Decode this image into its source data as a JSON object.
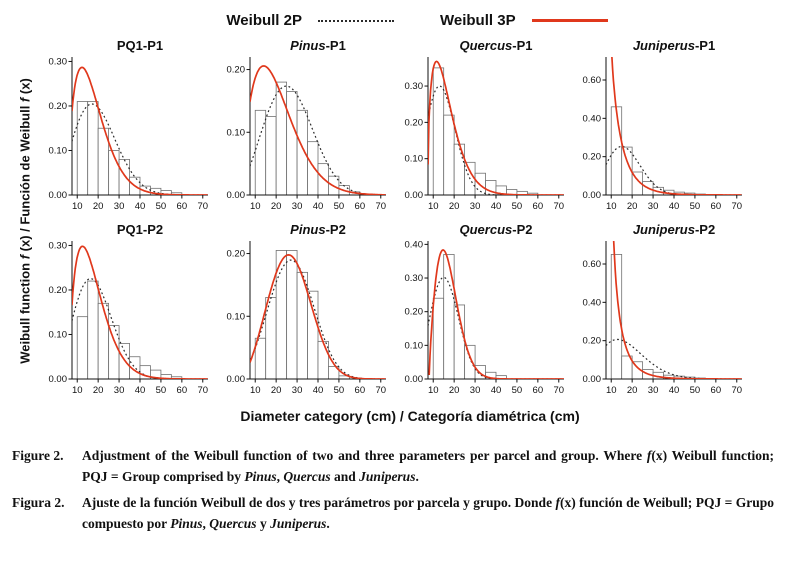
{
  "legend": {
    "items": [
      {
        "label": "Weibull 2P",
        "style": "dotted",
        "color": "#2a2a2a"
      },
      {
        "label": "Weibull 3P",
        "style": "solid",
        "color": "#e0381c"
      }
    ]
  },
  "axes": {
    "y_label_segments": [
      {
        "t": "Weibull function "
      },
      {
        "t": "f",
        "i": true
      },
      {
        "t": " (x) / Función de Weibull "
      },
      {
        "t": "f",
        "i": true
      },
      {
        "t": " (x)"
      }
    ],
    "x_label": "Diameter category (cm) / Categoría diamétrica (cm)"
  },
  "caption": {
    "english": {
      "label": "Figure 2.",
      "segments": [
        {
          "t": "Adjustment of the Weibull function of two and three parameters per parcel and group. Where "
        },
        {
          "t": "f",
          "i": true
        },
        {
          "t": "(x) Weibull function; PQJ = Group comprised by "
        },
        {
          "t": "Pinus",
          "i": true
        },
        {
          "t": ", "
        },
        {
          "t": "Quercus",
          "i": true
        },
        {
          "t": " and "
        },
        {
          "t": "Juniperus",
          "i": true
        },
        {
          "t": "."
        }
      ]
    },
    "spanish": {
      "label": "Figura 2.",
      "segments": [
        {
          "t": "Ajuste de la función Weibull de dos y tres parámetros por parcela y grupo. Donde "
        },
        {
          "t": "f",
          "i": true
        },
        {
          "t": "(x) función de Weibull; PQJ = Grupo compuesto por "
        },
        {
          "t": "Pinus",
          "i": true
        },
        {
          "t": ", "
        },
        {
          "t": "Quercus",
          "i": true
        },
        {
          "t": " y "
        },
        {
          "t": "Juniperus",
          "i": true
        },
        {
          "t": "."
        }
      ]
    }
  },
  "chart_data": [
    {
      "id": "pq1-p1",
      "type": "histogram+line",
      "title_segments": [
        {
          "t": "PQ1-P1"
        }
      ],
      "xlim": [
        7.5,
        72.5
      ],
      "xticks": [
        10,
        20,
        30,
        40,
        50,
        60,
        70
      ],
      "ylim": [
        0,
        0.31
      ],
      "yticks": [
        0,
        0.1,
        0.2,
        0.3
      ],
      "bin_start": 10,
      "bin_width": 5,
      "bar_values": [
        0.21,
        0.21,
        0.15,
        0.1,
        0.08,
        0.04,
        0.02,
        0.015,
        0.01,
        0.005
      ],
      "curve_scale": 5,
      "series": [
        {
          "name": "Weibull 2P",
          "style": "dotted",
          "color": "#2a2a2a",
          "weibull": {
            "shape": 2.2,
            "scale": 22.4,
            "location": 0
          }
        },
        {
          "name": "Weibull 3P",
          "style": "solid",
          "color": "#e0381c",
          "weibull": {
            "shape": 1.5,
            "scale": 13,
            "location": 6
          }
        }
      ]
    },
    {
      "id": "pinus-p1",
      "type": "histogram+line",
      "title_segments": [
        {
          "t": "Pinus",
          "i": true
        },
        {
          "t": "-P1"
        }
      ],
      "xlim": [
        7.5,
        72.5
      ],
      "xticks": [
        10,
        20,
        30,
        40,
        50,
        60,
        70
      ],
      "ylim": [
        0,
        0.22
      ],
      "yticks": [
        0,
        0.1,
        0.2
      ],
      "bin_start": 10,
      "bin_width": 5,
      "bar_values": [
        0.135,
        0.125,
        0.18,
        0.165,
        0.135,
        0.085,
        0.05,
        0.03,
        0.015,
        0.005
      ],
      "curve_scale": 5,
      "series": [
        {
          "name": "Weibull 2P",
          "style": "dotted",
          "color": "#2a2a2a",
          "weibull": {
            "shape": 2.6,
            "scale": 30,
            "location": 0
          }
        },
        {
          "name": "Weibull 3P",
          "style": "solid",
          "color": "#e0381c",
          "weibull": {
            "shape": 1.6,
            "scale": 18.5,
            "location": 4
          }
        }
      ]
    },
    {
      "id": "quercus-p1",
      "type": "histogram+line",
      "title_segments": [
        {
          "t": "Quercus",
          "i": true
        },
        {
          "t": "-P1"
        }
      ],
      "xlim": [
        7.5,
        72.5
      ],
      "xticks": [
        10,
        20,
        30,
        40,
        50,
        60,
        70
      ],
      "ylim": [
        0,
        0.38
      ],
      "yticks": [
        0,
        0.1,
        0.2,
        0.3
      ],
      "bin_start": 10,
      "bin_width": 5,
      "bar_values": [
        0.35,
        0.22,
        0.14,
        0.09,
        0.06,
        0.04,
        0.025,
        0.015,
        0.01,
        0.005
      ],
      "curve_scale": 5,
      "series": [
        {
          "name": "Weibull 2P",
          "style": "dotted",
          "color": "#2a2a2a",
          "weibull": {
            "shape": 2.4,
            "scale": 16.3,
            "location": 0
          }
        },
        {
          "name": "Weibull 3P",
          "style": "solid",
          "color": "#e0381c",
          "weibull": {
            "shape": 1.4,
            "scale": 10,
            "location": 7.5
          }
        }
      ]
    },
    {
      "id": "juniperus-p1",
      "type": "histogram+line",
      "title_segments": [
        {
          "t": "Juniperus",
          "i": true
        },
        {
          "t": "-P1"
        }
      ],
      "xlim": [
        7.5,
        72.5
      ],
      "xticks": [
        10,
        20,
        30,
        40,
        50,
        60,
        70
      ],
      "ylim": [
        0,
        0.72
      ],
      "yticks": [
        0,
        0.2,
        0.4,
        0.6
      ],
      "bin_start": 10,
      "bin_width": 5,
      "bar_values": [
        0.46,
        0.25,
        0.12,
        0.07,
        0.04,
        0.025,
        0.015,
        0.01,
        0.005,
        0.0025
      ],
      "curve_scale": 5,
      "series": [
        {
          "name": "Weibull 2P",
          "style": "dotted",
          "color": "#2a2a2a",
          "weibull": {
            "shape": 2.35,
            "scale": 19,
            "location": 0
          }
        },
        {
          "name": "Weibull 3P",
          "style": "solid",
          "color": "#e0381c",
          "weibull": {
            "shape": 0.9,
            "scale": 5.5,
            "location": 9
          }
        }
      ]
    },
    {
      "id": "pq1-p2",
      "type": "histogram+line",
      "title_segments": [
        {
          "t": "PQ1-P2"
        }
      ],
      "xlim": [
        7.5,
        72.5
      ],
      "xticks": [
        10,
        20,
        30,
        40,
        50,
        60,
        70
      ],
      "ylim": [
        0,
        0.31
      ],
      "yticks": [
        0,
        0.1,
        0.2,
        0.3
      ],
      "bin_start": 10,
      "bin_width": 5,
      "bar_values": [
        0.14,
        0.22,
        0.17,
        0.12,
        0.08,
        0.05,
        0.03,
        0.02,
        0.01,
        0.005
      ],
      "curve_scale": 5,
      "series": [
        {
          "name": "Weibull 2P",
          "style": "dotted",
          "color": "#2a2a2a",
          "weibull": {
            "shape": 2.3,
            "scale": 21,
            "location": 0
          }
        },
        {
          "name": "Weibull 3P",
          "style": "solid",
          "color": "#e0381c",
          "weibull": {
            "shape": 1.5,
            "scale": 12.5,
            "location": 6.5
          }
        }
      ]
    },
    {
      "id": "pinus-p2",
      "type": "histogram+line",
      "title_segments": [
        {
          "t": "Pinus",
          "i": true
        },
        {
          "t": "-P2"
        }
      ],
      "xlim": [
        7.5,
        72.5
      ],
      "xticks": [
        10,
        20,
        30,
        40,
        50,
        60,
        70
      ],
      "ylim": [
        0,
        0.22
      ],
      "yticks": [
        0,
        0.1,
        0.2
      ],
      "bin_start": 10,
      "bin_width": 5,
      "bar_values": [
        0.065,
        0.13,
        0.205,
        0.205,
        0.17,
        0.14,
        0.06,
        0.02,
        0.005,
        0
      ],
      "curve_scale": 5,
      "series": [
        {
          "name": "Weibull 2P",
          "style": "dotted",
          "color": "#2a2a2a",
          "weibull": {
            "shape": 3.0,
            "scale": 31,
            "location": 0
          }
        },
        {
          "name": "Weibull 3P",
          "style": "solid",
          "color": "#e0381c",
          "weibull": {
            "shape": 2.8,
            "scale": 28,
            "location": 2
          }
        }
      ]
    },
    {
      "id": "quercus-p2",
      "type": "histogram+line",
      "title_segments": [
        {
          "t": "Quercus",
          "i": true
        },
        {
          "t": "-P2"
        }
      ],
      "xlim": [
        7.5,
        72.5
      ],
      "xticks": [
        10,
        20,
        30,
        40,
        50,
        60,
        70
      ],
      "ylim": [
        0,
        0.41
      ],
      "yticks": [
        0,
        0.1,
        0.2,
        0.3,
        0.4
      ],
      "bin_start": 10,
      "bin_width": 5,
      "bar_values": [
        0.24,
        0.37,
        0.22,
        0.1,
        0.04,
        0.02,
        0.01,
        0,
        0,
        0
      ],
      "curve_scale": 5,
      "series": [
        {
          "name": "Weibull 2P",
          "style": "dotted",
          "color": "#2a2a2a",
          "weibull": {
            "shape": 2.7,
            "scale": 17.8,
            "location": 0
          }
        },
        {
          "name": "Weibull 3P",
          "style": "solid",
          "color": "#e0381c",
          "weibull": {
            "shape": 1.8,
            "scale": 10.5,
            "location": 8
          }
        }
      ]
    },
    {
      "id": "juniperus-p2",
      "type": "histogram+line",
      "title_segments": [
        {
          "t": "Juniperus",
          "i": true
        },
        {
          "t": "-P2"
        }
      ],
      "xlim": [
        7.5,
        72.5
      ],
      "xticks": [
        10,
        20,
        30,
        40,
        50,
        60,
        70
      ],
      "ylim": [
        0,
        0.72
      ],
      "yticks": [
        0,
        0.2,
        0.4,
        0.6
      ],
      "bin_start": 10,
      "bin_width": 5,
      "bar_values": [
        0.65,
        0.12,
        0.09,
        0.05,
        0.035,
        0.02,
        0.015,
        0.01,
        0.005,
        0
      ],
      "curve_scale": 5,
      "series": [
        {
          "name": "Weibull 2P",
          "style": "dotted",
          "color": "#2a2a2a",
          "weibull": {
            "shape": 1.85,
            "scale": 19.8,
            "location": 0
          }
        },
        {
          "name": "Weibull 3P",
          "style": "solid",
          "color": "#e0381c",
          "weibull": {
            "shape": 0.8,
            "scale": 4,
            "location": 9.5
          }
        }
      ]
    }
  ]
}
